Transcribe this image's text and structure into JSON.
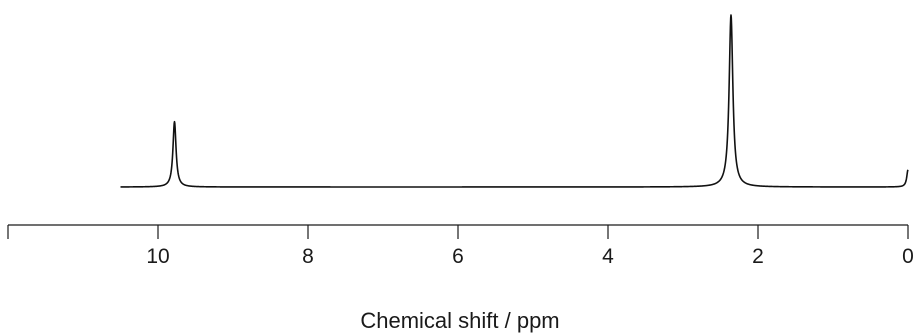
{
  "chart_data": {
    "type": "line",
    "title": "",
    "xlabel": "Chemical shift / ppm",
    "ylabel": "",
    "x_axis_reversed": true,
    "xlim": [
      12.0,
      0.0
    ],
    "x_ticks": [
      10,
      8,
      6,
      4,
      2,
      0
    ],
    "x_tick_labels": [
      "10",
      "8",
      "6",
      "4",
      "2",
      "0"
    ],
    "grid": false,
    "legend": "none",
    "y_axis_shown": false,
    "ylim": [
      0,
      1.0
    ],
    "series": [
      {
        "line_color": "#111111",
        "x_range": [
          10.5,
          0.0
        ],
        "baseline": 0.0,
        "peaks": [
          {
            "center": 9.78,
            "height": 0.38,
            "width": 0.025
          },
          {
            "center": 2.36,
            "height": 1.0,
            "width": 0.03
          },
          {
            "center": 0.0,
            "height": 0.1,
            "width": 0.02
          }
        ]
      }
    ]
  }
}
